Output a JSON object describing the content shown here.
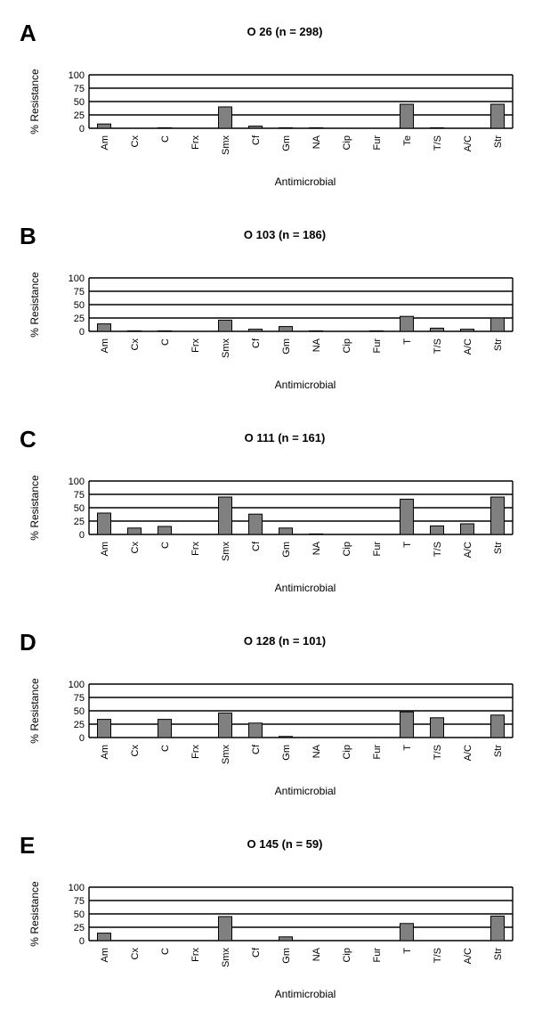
{
  "colors": {
    "bar": "#808080",
    "bar_outline": "#000000",
    "grid": "#000000",
    "background": "#ffffff"
  },
  "chart_data": [
    {
      "type": "bar",
      "panel": "A",
      "title": "O 26 (n = 298)",
      "xlabel": "Antimicrobial",
      "ylabel": "% Resistance",
      "ylim": [
        0,
        100
      ],
      "yticks": [
        "0",
        "25",
        "50",
        "75",
        "100"
      ],
      "grid": true,
      "categories": [
        "Am",
        "Cx",
        "C",
        "Frx",
        "Smx",
        "Cf",
        "Gm",
        "NA",
        "Cip",
        "Fur",
        "Te",
        "T/S",
        "A/C",
        "Str"
      ],
      "values": [
        8,
        0,
        1,
        0,
        40,
        4,
        1,
        1,
        0,
        0,
        45,
        1,
        0,
        45
      ]
    },
    {
      "type": "bar",
      "panel": "B",
      "title": "O 103 (n = 186)",
      "xlabel": "Antimicrobial",
      "ylabel": "% Resistance",
      "ylim": [
        0,
        100
      ],
      "yticks": [
        "0",
        "25",
        "50",
        "75",
        "100"
      ],
      "grid": true,
      "categories": [
        "Am",
        "Cx",
        "C",
        "Frx",
        "Smx",
        "Cf",
        "Gm",
        "NA",
        "Cip",
        "Fur",
        "T",
        "T/S",
        "A/C",
        "Str"
      ],
      "values": [
        14,
        1,
        1,
        0,
        21,
        4,
        9,
        1,
        0,
        1,
        28,
        6,
        4,
        25
      ]
    },
    {
      "type": "bar",
      "panel": "C",
      "title": "O 111 (n = 161)",
      "xlabel": "Antimicrobial",
      "ylabel": "% Resistance",
      "ylim": [
        0,
        100
      ],
      "yticks": [
        "0",
        "25",
        "50",
        "75",
        "100"
      ],
      "grid": true,
      "categories": [
        "Am",
        "Cx",
        "C",
        "Frx",
        "Smx",
        "Cf",
        "Gm",
        "NA",
        "Cip",
        "Fur",
        "T",
        "T/S",
        "A/C",
        "Str"
      ],
      "values": [
        40,
        12,
        15,
        0,
        70,
        38,
        12,
        1,
        0,
        0,
        66,
        16,
        20,
        70
      ]
    },
    {
      "type": "bar",
      "panel": "D",
      "title": "O 128 (n = 101)",
      "xlabel": "Antimicrobial",
      "ylabel": "% Resistance",
      "ylim": [
        0,
        100
      ],
      "yticks": [
        "0",
        "25",
        "50",
        "75",
        "100"
      ],
      "grid": true,
      "categories": [
        "Am",
        "Cx",
        "C",
        "Frx",
        "Smx",
        "Cf",
        "Gm",
        "NA",
        "Cip",
        "Fur",
        "T",
        "T/S",
        "A/C",
        "Str"
      ],
      "values": [
        34,
        0,
        34,
        0,
        46,
        27,
        2,
        0,
        0,
        0,
        48,
        37,
        0,
        42
      ]
    },
    {
      "type": "bar",
      "panel": "E",
      "title": "O 145 (n = 59)",
      "xlabel": "Antimicrobial",
      "ylabel": "% Resistance",
      "ylim": [
        0,
        100
      ],
      "yticks": [
        "0",
        "25",
        "50",
        "75",
        "100"
      ],
      "grid": true,
      "categories": [
        "Am",
        "Cx",
        "C",
        "Frx",
        "Smx",
        "Cf",
        "Gm",
        "NA",
        "Cip",
        "Fur",
        "T",
        "T/S",
        "A/C",
        "Str"
      ],
      "values": [
        14,
        0,
        0,
        0,
        45,
        0,
        7,
        0,
        0,
        0,
        32,
        0,
        0,
        46
      ]
    }
  ]
}
